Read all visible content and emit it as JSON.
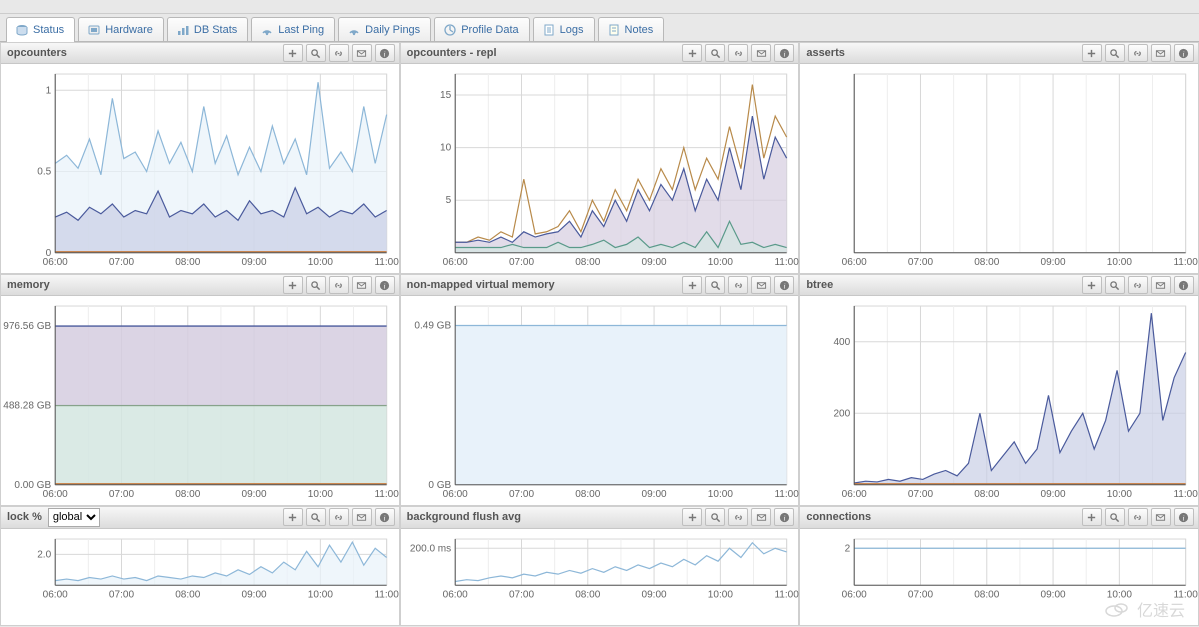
{
  "tabs": [
    {
      "label": "Status",
      "icon": "disk-icon",
      "active": true
    },
    {
      "label": "Hardware",
      "icon": "hardware-icon",
      "active": false
    },
    {
      "label": "DB Stats",
      "icon": "dbstats-icon",
      "active": false
    },
    {
      "label": "Last Ping",
      "icon": "ping-icon",
      "active": false
    },
    {
      "label": "Daily Pings",
      "icon": "ping-icon",
      "active": false
    },
    {
      "label": "Profile Data",
      "icon": "profile-icon",
      "active": false
    },
    {
      "label": "Logs",
      "icon": "logs-icon",
      "active": false
    },
    {
      "label": "Notes",
      "icon": "notes-icon",
      "active": false
    }
  ],
  "panel_toolbar_icons": [
    "plus-icon",
    "magnify-icon",
    "link-icon",
    "mail-icon",
    "info-icon"
  ],
  "x_ticks": [
    "06:00",
    "07:00",
    "08:00",
    "09:00",
    "10:00",
    "11:00"
  ],
  "colors": {
    "bg": "#ffffff",
    "grid": "#d8d8d8",
    "grid_minor": "#eeeeee",
    "axis": "#555555",
    "text": "#666666",
    "series_light_blue_line": "#8db7d8",
    "series_light_blue_fill": "#e8f2fa",
    "series_dark_blue_line": "#4a5a9c",
    "series_dark_blue_fill": "#c9cfe6",
    "series_orange_line": "#b88a4a",
    "series_teal_line": "#5a9a8a",
    "series_teal_fill": "#d4e6e1",
    "series_purple_fill": "#d5cddf",
    "series_green_line": "#5a8a5a",
    "series_brown_line": "#a86d3a",
    "baseline_orange": "#c97a3a"
  },
  "charts": {
    "opcounters": {
      "title": "opcounters",
      "type": "line-area",
      "ylim": [
        0,
        1.1
      ],
      "yticks": [
        {
          "v": 0,
          "l": "0"
        },
        {
          "v": 0.5,
          "l": "0.5"
        },
        {
          "v": 1,
          "l": "1"
        }
      ],
      "series": [
        {
          "name": "light",
          "fill_key": "series_light_blue_fill",
          "line_key": "series_light_blue_line",
          "values": [
            0.55,
            0.6,
            0.52,
            0.7,
            0.48,
            0.95,
            0.58,
            0.62,
            0.5,
            0.75,
            0.55,
            0.68,
            0.5,
            0.9,
            0.55,
            0.72,
            0.48,
            0.65,
            0.5,
            0.78,
            0.55,
            0.7,
            0.48,
            1.05,
            0.52,
            0.62,
            0.5,
            0.9,
            0.55,
            0.85
          ]
        },
        {
          "name": "dark",
          "fill_key": "series_dark_blue_fill",
          "line_key": "series_dark_blue_line",
          "values": [
            0.22,
            0.25,
            0.2,
            0.28,
            0.24,
            0.3,
            0.22,
            0.26,
            0.24,
            0.38,
            0.22,
            0.26,
            0.24,
            0.3,
            0.22,
            0.26,
            0.2,
            0.32,
            0.24,
            0.26,
            0.22,
            0.4,
            0.24,
            0.28,
            0.22,
            0.26,
            0.24,
            0.3,
            0.22,
            0.26
          ]
        }
      ],
      "baseline": true
    },
    "opcounters_repl": {
      "title": "opcounters - repl",
      "type": "line-area",
      "ylim": [
        0,
        17
      ],
      "yticks": [
        {
          "v": 5,
          "l": "5"
        },
        {
          "v": 10,
          "l": "10"
        },
        {
          "v": 15,
          "l": "15"
        }
      ],
      "series": [
        {
          "name": "orange",
          "line_key": "series_orange_line",
          "fill_key": null,
          "values": [
            1,
            1,
            1.5,
            1.2,
            2,
            1.5,
            7,
            1.8,
            2,
            2.5,
            4,
            2,
            5,
            3,
            6,
            4,
            7,
            5,
            8,
            6,
            10,
            6,
            9,
            7,
            12,
            8,
            16,
            9,
            13,
            11
          ]
        },
        {
          "name": "darkblue",
          "line_key": "series_dark_blue_line",
          "fill_key": "series_purple_fill",
          "values": [
            1,
            1,
            1.2,
            1,
            1.5,
            1,
            2,
            1.5,
            1.8,
            2,
            3,
            1.5,
            4,
            2.5,
            5,
            3,
            6,
            4,
            6.5,
            5,
            8,
            4,
            7,
            5,
            10,
            6,
            13,
            7,
            11,
            9
          ]
        },
        {
          "name": "teal",
          "line_key": "series_teal_line",
          "fill_key": "series_teal_fill",
          "values": [
            0.5,
            0.5,
            0.5,
            0.5,
            0.5,
            0.8,
            0.5,
            0.5,
            0.5,
            1,
            0.5,
            0.5,
            0.8,
            1.2,
            0.5,
            0.8,
            1.5,
            0.5,
            0.8,
            0.5,
            1,
            0.5,
            2,
            0.5,
            3,
            0.8,
            1,
            0.5,
            0.8,
            0.5
          ]
        }
      ],
      "baseline": false
    },
    "asserts": {
      "title": "asserts",
      "type": "line",
      "ylim": [
        0,
        1
      ],
      "yticks": [],
      "series": [],
      "baseline": false
    },
    "memory": {
      "title": "memory",
      "type": "stacked-flat",
      "ylim": [
        0,
        1100
      ],
      "yticks": [
        {
          "v": 0,
          "l": "0.00 GB"
        },
        {
          "v": 488.28,
          "l": "488.28 GB"
        },
        {
          "v": 976.56,
          "l": "976.56 GB"
        }
      ],
      "bands": [
        {
          "from": 0,
          "to": 488.28,
          "fill_key": "series_teal_fill",
          "line_key": "series_green_line"
        },
        {
          "from": 488.28,
          "to": 976.56,
          "fill_key": "series_purple_fill",
          "line_key": "series_dark_blue_line"
        }
      ],
      "baseline": true
    },
    "nonmapped": {
      "title": "non-mapped virtual memory",
      "type": "flat-area",
      "ylim": [
        0,
        0.55
      ],
      "yticks": [
        {
          "v": 0,
          "l": "0 GB"
        },
        {
          "v": 0.49,
          "l": "0.49 GB"
        }
      ],
      "value": 0.49,
      "fill_key": "series_light_blue_fill",
      "line_key": "series_light_blue_line",
      "baseline": false
    },
    "btree": {
      "title": "btree",
      "type": "line-area",
      "ylim": [
        0,
        500
      ],
      "yticks": [
        {
          "v": 200,
          "l": "200"
        },
        {
          "v": 400,
          "l": "400"
        }
      ],
      "series": [
        {
          "name": "blue",
          "line_key": "series_dark_blue_line",
          "fill_key": "series_dark_blue_fill",
          "values": [
            5,
            10,
            8,
            15,
            10,
            20,
            15,
            30,
            40,
            25,
            60,
            200,
            40,
            80,
            120,
            60,
            100,
            250,
            90,
            150,
            200,
            100,
            180,
            320,
            150,
            200,
            480,
            180,
            300,
            370
          ]
        }
      ],
      "baseline": true
    },
    "lock": {
      "title": "lock %",
      "type": "line-area",
      "ylim": [
        0,
        3
      ],
      "yticks": [
        {
          "v": 2,
          "l": "2.0"
        }
      ],
      "dropdown": {
        "selected": "global",
        "options": [
          "global"
        ]
      },
      "series": [
        {
          "name": "blue",
          "line_key": "series_light_blue_line",
          "fill_key": "series_light_blue_fill",
          "values": [
            0.3,
            0.4,
            0.3,
            0.5,
            0.4,
            0.6,
            0.4,
            0.5,
            0.3,
            0.6,
            0.5,
            0.4,
            0.6,
            0.5,
            0.8,
            0.6,
            1.0,
            0.7,
            1.2,
            0.8,
            1.5,
            1.0,
            2.2,
            1.2,
            2.6,
            1.5,
            2.8,
            1.3,
            2.4,
            1.8
          ]
        }
      ],
      "baseline": false,
      "partial_height": 70
    },
    "bgflush": {
      "title": "background flush avg",
      "type": "line",
      "ylim": [
        0,
        250
      ],
      "yticks": [
        {
          "v": 200,
          "l": "200.0 ms"
        }
      ],
      "series": [
        {
          "name": "blue",
          "line_key": "series_light_blue_line",
          "fill_key": null,
          "values": [
            20,
            30,
            25,
            40,
            50,
            40,
            60,
            50,
            70,
            60,
            80,
            65,
            90,
            70,
            100,
            80,
            110,
            90,
            120,
            100,
            140,
            110,
            160,
            130,
            200,
            150,
            230,
            170,
            200,
            180
          ]
        }
      ],
      "baseline": false,
      "partial_height": 70
    },
    "connections": {
      "title": "connections",
      "type": "line",
      "ylim": [
        0,
        2.5
      ],
      "yticks": [
        {
          "v": 2,
          "l": "2"
        }
      ],
      "series": [
        {
          "name": "blue",
          "line_key": "series_light_blue_line",
          "fill_key": null,
          "values": [
            2,
            2,
            2,
            2,
            2,
            2,
            2,
            2,
            2,
            2,
            2,
            2,
            2,
            2,
            2,
            2,
            2,
            2,
            2,
            2,
            2,
            2,
            2,
            2,
            2,
            2,
            2,
            2,
            2,
            2
          ]
        }
      ],
      "baseline": false,
      "partial_height": 70
    }
  },
  "watermark": "亿速云"
}
